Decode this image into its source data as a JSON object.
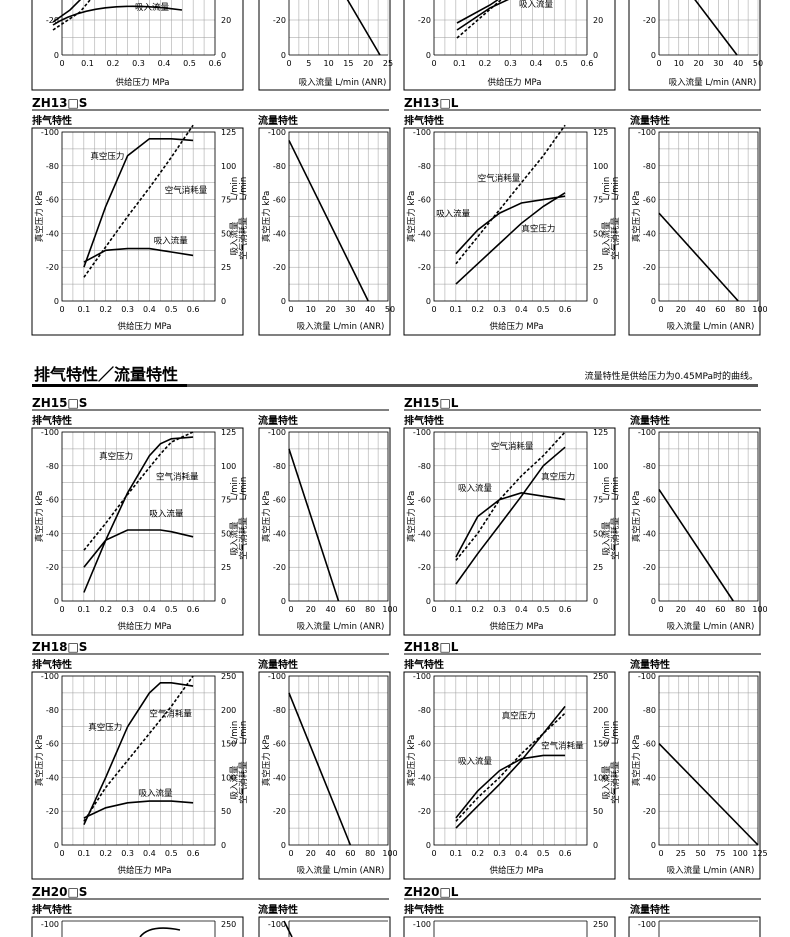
{
  "section_title": "排气特性／流量特性",
  "section_note": "流量特性是供给压力为0.45MPa时的曲线。",
  "labels": {
    "exhaust": "排气特性",
    "flow": "流量特性",
    "vac_axis": "真空压力 kPa",
    "right_axis": "吸入流量 空气消耗量 L/min (ANR)",
    "x_supply": "供给压力 MPa",
    "x_flow": "吸入流量 L/min (ANR)",
    "vac": "真空压力",
    "air": "空气消耗量",
    "suction": "吸入流量"
  },
  "chart_data": [
    {
      "model": "ZH13□S",
      "type": "line",
      "exhaust": {
        "x": [
          0.1,
          0.2,
          0.3,
          0.4,
          0.45,
          0.5,
          0.6
        ],
        "vacuum": [
          -20,
          -56,
          -86,
          -96,
          -96,
          -96,
          -95
        ],
        "air": [
          -14,
          -32,
          -50,
          -67,
          -76,
          -85,
          -104
        ],
        "suction": [
          -23,
          -30,
          -31,
          -31,
          -30,
          -29,
          -27
        ],
        "right_max": 125
      },
      "flow": {
        "x_ticks": [
          "0",
          "10",
          "20",
          "30",
          "40",
          "50"
        ],
        "x_max": 50,
        "line": [
          [
            0,
            -95
          ],
          [
            40,
            0
          ]
        ]
      }
    },
    {
      "model": "ZH13□L",
      "type": "line",
      "exhaust": {
        "x": [
          0.1,
          0.2,
          0.3,
          0.4,
          0.5,
          0.6
        ],
        "vacuum": [
          -10,
          -22,
          -34,
          -46,
          -56,
          -64
        ],
        "air": [
          -22,
          -38,
          -54,
          -70,
          -86,
          -104
        ],
        "suction": [
          -28,
          -42,
          -52,
          -58,
          -60,
          -62
        ],
        "right_max": 125
      },
      "flow": {
        "x_ticks": [
          "0",
          "20",
          "40",
          "60",
          "80",
          "100"
        ],
        "x_max": 100,
        "line": [
          [
            0,
            -52
          ],
          [
            80,
            0
          ]
        ]
      }
    },
    {
      "model": "ZH15□S",
      "type": "line",
      "exhaust": {
        "x": [
          0.1,
          0.2,
          0.3,
          0.4,
          0.45,
          0.5,
          0.6
        ],
        "vacuum": [
          -5,
          -36,
          -64,
          -86,
          -93,
          -96,
          -97
        ],
        "air": [
          -30,
          -46,
          -63,
          -79,
          -87,
          -94,
          -100
        ],
        "suction": [
          -20,
          -36,
          -42,
          -42,
          -42,
          -41,
          -38
        ],
        "right_max": 125
      },
      "flow": {
        "x_ticks": [
          "0",
          "20",
          "40",
          "60",
          "80",
          "100"
        ],
        "x_max": 100,
        "line": [
          [
            0,
            -90
          ],
          [
            50,
            0
          ]
        ]
      }
    },
    {
      "model": "ZH15□L",
      "type": "line",
      "exhaust": {
        "x": [
          0.1,
          0.2,
          0.3,
          0.4,
          0.5,
          0.6
        ],
        "vacuum": [
          -10,
          -28,
          -45,
          -62,
          -80,
          -91
        ],
        "air": [
          -24,
          -40,
          -60,
          -74,
          -86,
          -100
        ],
        "suction": [
          -26,
          -50,
          -60,
          -64,
          -62,
          -60
        ],
        "right_max": 125
      },
      "flow": {
        "x_ticks": [
          "0",
          "20",
          "40",
          "60",
          "80",
          "100"
        ],
        "x_max": 100,
        "line": [
          [
            0,
            -66
          ],
          [
            75,
            0
          ]
        ]
      }
    },
    {
      "model": "ZH18□S",
      "type": "line",
      "exhaust": {
        "x": [
          0.1,
          0.2,
          0.3,
          0.4,
          0.45,
          0.5,
          0.6
        ],
        "vacuum": [
          -12,
          -40,
          -70,
          -90,
          -96,
          -96,
          -94
        ],
        "air": [
          -14,
          -34,
          -50,
          -66,
          -74,
          -82,
          -100
        ],
        "suction": [
          -16,
          -22,
          -25,
          -26,
          -26,
          -26,
          -25
        ],
        "right_max": 250
      },
      "flow": {
        "x_ticks": [
          "0",
          "20",
          "40",
          "60",
          "80",
          "100"
        ],
        "x_max": 100,
        "line": [
          [
            0,
            -90
          ],
          [
            62,
            0
          ]
        ]
      }
    },
    {
      "model": "ZH18□L",
      "type": "line",
      "exhaust": {
        "x": [
          0.1,
          0.2,
          0.3,
          0.4,
          0.5,
          0.6
        ],
        "vacuum": [
          -10,
          -23,
          -36,
          -50,
          -66,
          -82
        ],
        "air": [
          -14,
          -28,
          -40,
          -54,
          -66,
          -78
        ],
        "suction": [
          -16,
          -32,
          -44,
          -51,
          -53,
          -53
        ],
        "right_max": 250
      },
      "flow": {
        "x_ticks": [
          "0",
          "25",
          "50",
          "75",
          "100",
          "125"
        ],
        "x_max": 125,
        "line": [
          [
            0,
            -60
          ],
          [
            125,
            0
          ]
        ]
      }
    },
    {
      "model": "ZH20□S",
      "type": "line",
      "exhaust": {
        "right_max": 250
      },
      "flow": {}
    },
    {
      "model": "ZH20□L",
      "type": "line",
      "exhaust": {
        "right_max": 250
      },
      "flow": {}
    }
  ],
  "top_row": {
    "left_ticks_right": [
      "20",
      "0"
    ],
    "left_x_ticks": [
      "0",
      "0.1",
      "0.2",
      "0.3",
      "0.4",
      "0.5",
      "0.6"
    ],
    "flow1_x_ticks": [
      "0",
      "5",
      "10",
      "15",
      "20",
      "25"
    ],
    "flow2_x_ticks": [
      "0",
      "10",
      "20",
      "30",
      "40",
      "50"
    ]
  },
  "colors": {
    "grid": "#9a9a9a",
    "line": "#000000",
    "rule": "#000000",
    "heading_bar": "#555555"
  }
}
